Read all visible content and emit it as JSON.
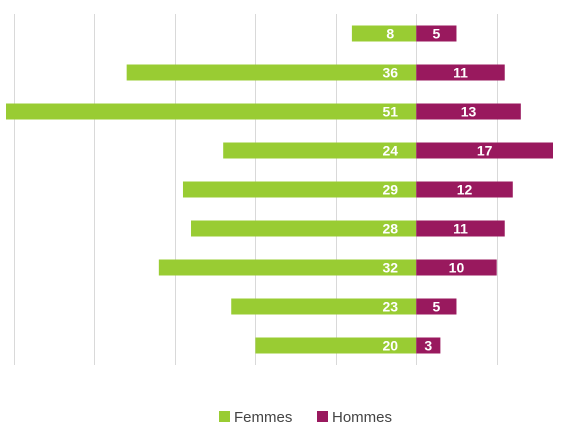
{
  "chart_data": {
    "type": "bar",
    "orientation": "horizontal-diverging",
    "categories": [
      "",
      "",
      "",
      "",
      "",
      "",
      "",
      "",
      ""
    ],
    "series": [
      {
        "name": "Femmes",
        "values": [
          8,
          36,
          51,
          24,
          29,
          28,
          32,
          23,
          20
        ],
        "color": "#99CC33"
      },
      {
        "name": "Hommes",
        "values": [
          5,
          11,
          13,
          17,
          12,
          11,
          10,
          5,
          3
        ],
        "color": "#99195E"
      }
    ],
    "xlim": [
      -51,
      17
    ],
    "grid": true,
    "legend_position": "bottom",
    "title": "",
    "xlabel": "",
    "ylabel": ""
  }
}
